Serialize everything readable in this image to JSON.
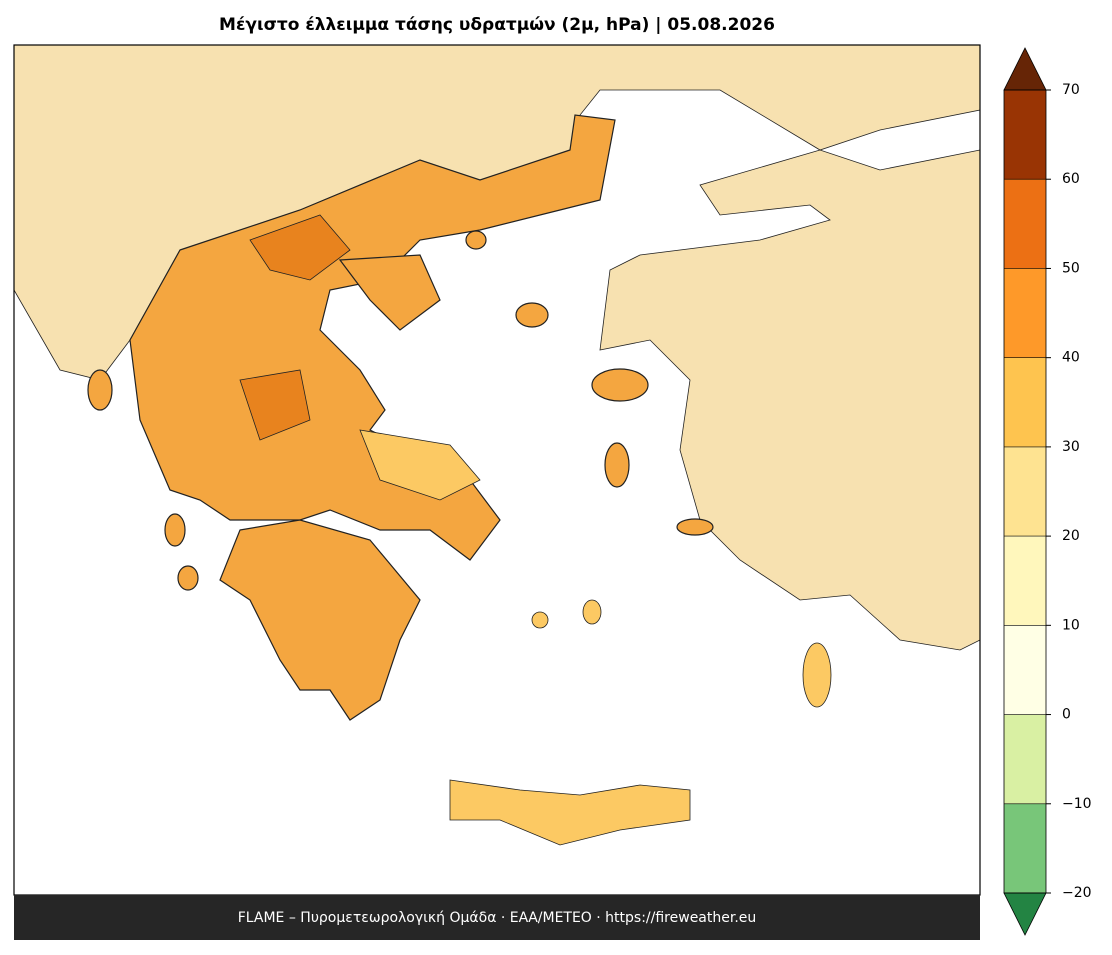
{
  "title": "Μέγιστο έλλειμμα τάσης υδρατμών (2μ, hPa)  |  05.08.2026",
  "colorbar": {
    "levels": [
      -20,
      -10,
      0,
      10,
      20,
      30,
      40,
      50,
      60,
      70
    ],
    "colors": [
      "#78c679",
      "#d9f0a3",
      "#ffffe5",
      "#fff7bc",
      "#fee391",
      "#fec44f",
      "#fe9929",
      "#ec7014",
      "#993404"
    ],
    "extend_min_color": "#238443",
    "extend_max_color": "#662506",
    "ticks": [
      {
        "value": -20,
        "label": "−20"
      },
      {
        "value": -10,
        "label": "−10"
      },
      0,
      10,
      20,
      30,
      40,
      50,
      60,
      70
    ]
  },
  "footer": "FLAME – Πυρομετεωρολογική Ομάδα · ΕΑΑ/METEO · https://fireweather.eu"
}
